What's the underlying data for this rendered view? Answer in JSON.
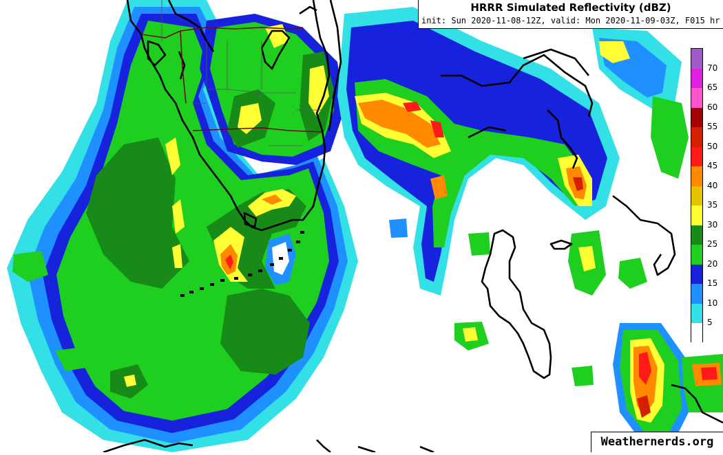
{
  "title": "HRRR Simulated Reflectivity (dBZ)",
  "subtitle": "init: Sun 2020-11-08-12Z, valid: Mon 2020-11-09-03Z, F015 hr",
  "credit": "Weathernerds.org",
  "colorbar": {
    "labels": [
      "70",
      "65",
      "60",
      "55",
      "50",
      "45",
      "40",
      "35",
      "30",
      "25",
      "20",
      "15",
      "10",
      "5"
    ],
    "colors": [
      "#a259c9",
      "#e020e0",
      "#ff55cc",
      "#a30000",
      "#d42000",
      "#ff1a1a",
      "#ff8a00",
      "#e3c200",
      "#ffff33",
      "#178a17",
      "#1fcf1f",
      "#1622dc",
      "#1e90ff",
      "#33e0e6",
      "#ffffff"
    ]
  },
  "palette": {
    "cyan": "#33e0e6",
    "lightblue": "#1e90ff",
    "blue": "#1622dc",
    "green": "#1fcf1f",
    "darkgreen": "#178a17",
    "yellow": "#ffff33",
    "gold": "#e3c200",
    "orange": "#ff8a00",
    "red": "#ff1a1a",
    "darkred": "#d42000",
    "coast": "#000000",
    "border": "#6a0a14"
  }
}
